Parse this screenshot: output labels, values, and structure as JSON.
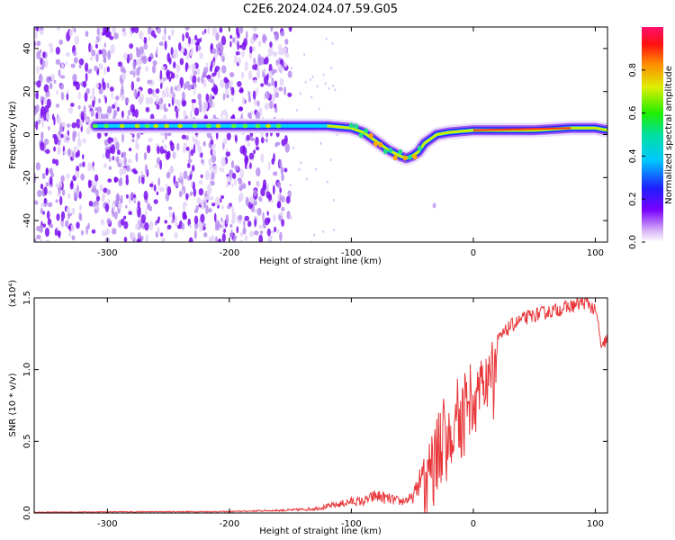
{
  "figure": {
    "title": "C2E6.2024.024.07.59.G05"
  },
  "chart_data": [
    {
      "type": "heatmap",
      "name": "spectrogram",
      "xlabel": "Height of straight line (km)",
      "ylabel": "Frequency (Hz)",
      "xlim": [
        -360,
        110
      ],
      "ylim": [
        -50,
        50
      ],
      "x_ticks": [
        -300,
        -200,
        -100,
        0,
        100
      ],
      "y_ticks": [
        -40,
        -20,
        0,
        20,
        40
      ],
      "colorbar": {
        "label": "Normalized spectral amplitude",
        "range": [
          0,
          1
        ],
        "ticks": [
          "0.0",
          "0.2",
          "0.4",
          "0.6",
          "0.8"
        ]
      },
      "noise_region_x": [
        -360,
        -150
      ],
      "signal_track": {
        "x": [
          -310,
          -250,
          -200,
          -150,
          -120,
          -100,
          -90,
          -80,
          -70,
          -60,
          -55,
          -50,
          -45,
          -40,
          -30,
          -20,
          0,
          20,
          50,
          80,
          100,
          110
        ],
        "y": [
          4,
          4,
          4,
          4,
          4,
          3,
          1,
          -3,
          -7,
          -10,
          -11,
          -10,
          -8,
          -4,
          0,
          1,
          2,
          2,
          2,
          3,
          3,
          2
        ]
      }
    },
    {
      "type": "line",
      "name": "snr",
      "xlabel": "Height of straight line (km)",
      "ylabel": "SNR (10 * v/v)",
      "y_multiplier": "(x10⁴)",
      "xlim": [
        -360,
        110
      ],
      "ylim": [
        0,
        1.5
      ],
      "x_ticks": [
        -300,
        -200,
        -100,
        0,
        100
      ],
      "y_ticks": [
        "0.0",
        "0.5",
        "1.0",
        "1.5"
      ],
      "color": "#e8383b",
      "envelope": {
        "x": [
          -360,
          -300,
          -200,
          -150,
          -130,
          -110,
          -100,
          -90,
          -80,
          -70,
          -60,
          -50,
          -45,
          -40,
          -35,
          -30,
          -25,
          -20,
          -15,
          -10,
          -5,
          0,
          10,
          20,
          30,
          40,
          50,
          60,
          70,
          80,
          90,
          95,
          100,
          103,
          105,
          108,
          110
        ],
        "y": [
          0.005,
          0.008,
          0.01,
          0.02,
          0.03,
          0.06,
          0.08,
          0.08,
          0.12,
          0.1,
          0.08,
          0.1,
          0.2,
          0.3,
          0.45,
          0.6,
          0.65,
          0.62,
          0.7,
          0.8,
          0.9,
          0.98,
          1.05,
          1.2,
          1.3,
          1.35,
          1.38,
          1.4,
          1.42,
          1.44,
          1.47,
          1.46,
          1.4,
          1.3,
          1.12,
          1.2,
          1.22
        ]
      }
    }
  ]
}
